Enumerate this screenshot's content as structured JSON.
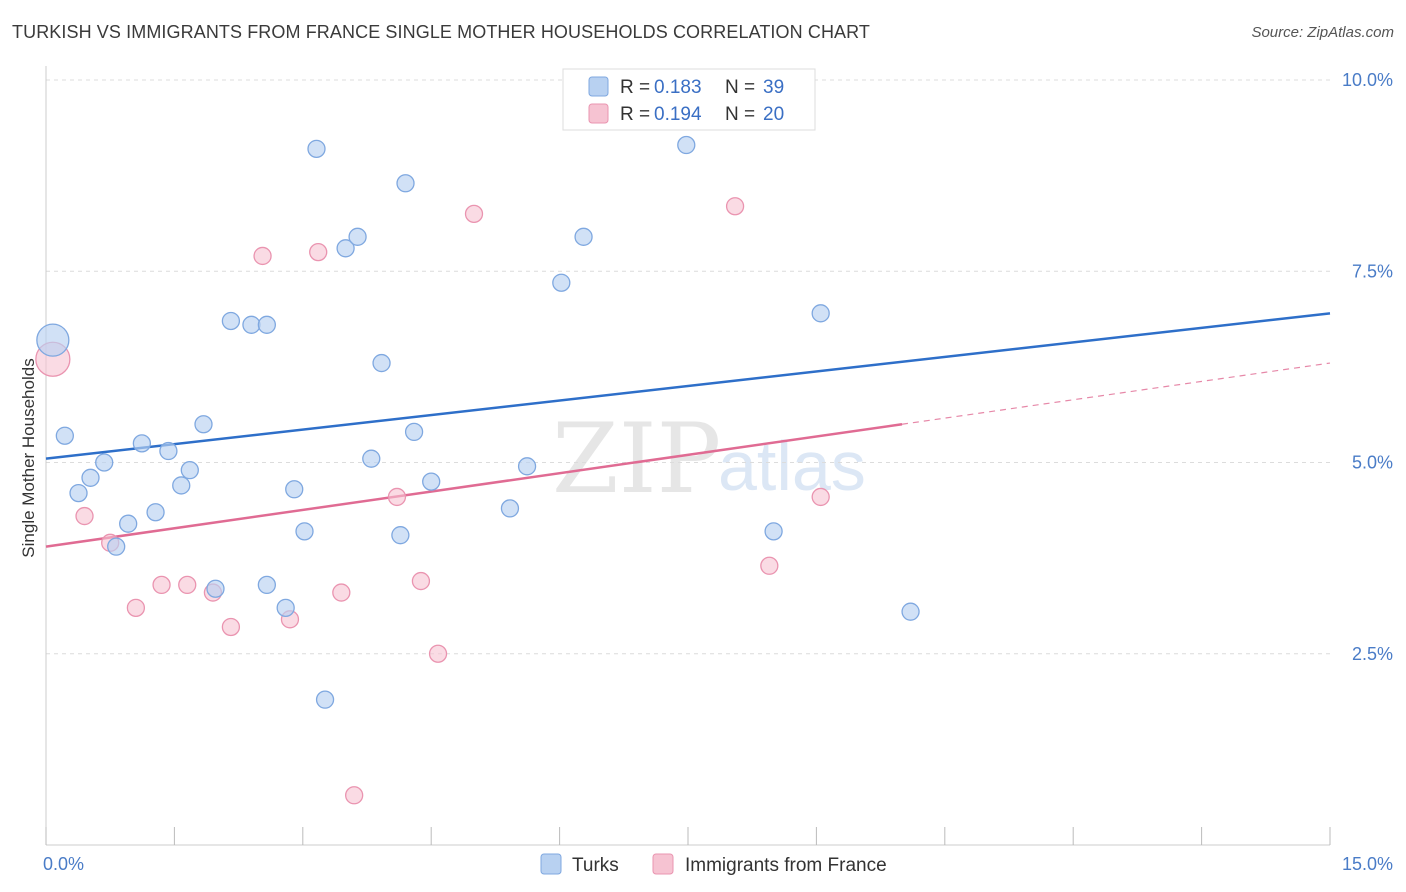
{
  "title": "TURKISH VS IMMIGRANTS FROM FRANCE SINGLE MOTHER HOUSEHOLDS CORRELATION CHART",
  "source": "Source: ZipAtlas.com",
  "watermark": {
    "zip": "ZIP",
    "atlas": "atlas"
  },
  "legend_top": [
    {
      "r_label": "R = ",
      "r_value": "0.183",
      "n_label": "N = ",
      "n_value": "39"
    },
    {
      "r_label": "R = ",
      "r_value": "0.194",
      "n_label": "N = ",
      "n_value": "20"
    }
  ],
  "legend_bottom": [
    "Turks",
    "Immigrants from France"
  ],
  "colors": {
    "turks_fill": "#b8d1f1",
    "turks_stroke": "#7fa8e0",
    "turks_line": "#2e6fc9",
    "france_fill": "#f6c3d2",
    "france_stroke": "#ea94b0",
    "france_line": "#e06b93"
  },
  "chart_data": {
    "type": "scatter",
    "title": "TURKISH VS IMMIGRANTS FROM FRANCE SINGLE MOTHER HOUSEHOLDS CORRELATION CHART",
    "xlabel": "",
    "ylabel": "Single Mother Households",
    "xlim": [
      0,
      15
    ],
    "ylim": [
      0,
      10
    ],
    "x_tick_labels": [
      "0.0%",
      "15.0%"
    ],
    "y_ticks": [
      2.5,
      5.0,
      7.5,
      10.0
    ],
    "y_tick_labels": [
      "2.5%",
      "5.0%",
      "7.5%",
      "10.0%"
    ],
    "grid": true,
    "series": [
      {
        "name": "Turks",
        "R": 0.183,
        "N": 39,
        "trend": {
          "x": [
            0,
            15
          ],
          "y": [
            5.05,
            6.95
          ]
        },
        "points": [
          {
            "x": 0.08,
            "y": 6.6,
            "big": true
          },
          {
            "x": 0.22,
            "y": 5.35
          },
          {
            "x": 0.38,
            "y": 4.6
          },
          {
            "x": 0.52,
            "y": 4.8
          },
          {
            "x": 0.68,
            "y": 5.0
          },
          {
            "x": 0.82,
            "y": 3.9
          },
          {
            "x": 0.96,
            "y": 4.2
          },
          {
            "x": 1.12,
            "y": 5.25
          },
          {
            "x": 1.28,
            "y": 4.35
          },
          {
            "x": 1.43,
            "y": 5.15
          },
          {
            "x": 1.58,
            "y": 4.7
          },
          {
            "x": 1.68,
            "y": 4.9
          },
          {
            "x": 1.84,
            "y": 5.5
          },
          {
            "x": 1.98,
            "y": 3.35
          },
          {
            "x": 2.16,
            "y": 6.85
          },
          {
            "x": 2.4,
            "y": 6.8
          },
          {
            "x": 2.58,
            "y": 6.8
          },
          {
            "x": 2.58,
            "y": 3.4
          },
          {
            "x": 2.8,
            "y": 3.1
          },
          {
            "x": 2.9,
            "y": 4.65
          },
          {
            "x": 3.02,
            "y": 4.1
          },
          {
            "x": 3.16,
            "y": 9.1
          },
          {
            "x": 3.26,
            "y": 1.9
          },
          {
            "x": 3.5,
            "y": 7.8
          },
          {
            "x": 3.64,
            "y": 7.95
          },
          {
            "x": 3.8,
            "y": 5.05
          },
          {
            "x": 3.92,
            "y": 6.3
          },
          {
            "x": 4.14,
            "y": 4.05
          },
          {
            "x": 4.2,
            "y": 8.65
          },
          {
            "x": 4.3,
            "y": 5.4
          },
          {
            "x": 4.5,
            "y": 4.75
          },
          {
            "x": 5.42,
            "y": 4.4
          },
          {
            "x": 5.62,
            "y": 4.95
          },
          {
            "x": 6.02,
            "y": 7.35
          },
          {
            "x": 6.28,
            "y": 7.95
          },
          {
            "x": 7.48,
            "y": 9.15
          },
          {
            "x": 8.5,
            "y": 4.1
          },
          {
            "x": 9.05,
            "y": 6.95
          },
          {
            "x": 10.1,
            "y": 3.05
          }
        ]
      },
      {
        "name": "Immigrants from France",
        "R": 0.194,
        "N": 20,
        "trend": {
          "x": [
            0,
            15
          ],
          "y": [
            3.9,
            6.3
          ],
          "solid_until_x": 10.0
        },
        "points": [
          {
            "x": 0.08,
            "y": 6.35,
            "big": true
          },
          {
            "x": 0.45,
            "y": 4.3
          },
          {
            "x": 0.75,
            "y": 3.95
          },
          {
            "x": 1.05,
            "y": 3.1
          },
          {
            "x": 1.35,
            "y": 3.4
          },
          {
            "x": 1.65,
            "y": 3.4
          },
          {
            "x": 1.95,
            "y": 3.3
          },
          {
            "x": 2.16,
            "y": 2.85
          },
          {
            "x": 2.53,
            "y": 7.7
          },
          {
            "x": 2.85,
            "y": 2.95
          },
          {
            "x": 3.18,
            "y": 7.75
          },
          {
            "x": 3.45,
            "y": 3.3
          },
          {
            "x": 4.1,
            "y": 4.55
          },
          {
            "x": 4.38,
            "y": 3.45
          },
          {
            "x": 4.58,
            "y": 2.5
          },
          {
            "x": 5.0,
            "y": 8.25
          },
          {
            "x": 3.6,
            "y": 0.65
          },
          {
            "x": 8.05,
            "y": 8.35
          },
          {
            "x": 8.45,
            "y": 3.65
          },
          {
            "x": 9.05,
            "y": 4.55
          }
        ]
      }
    ]
  }
}
